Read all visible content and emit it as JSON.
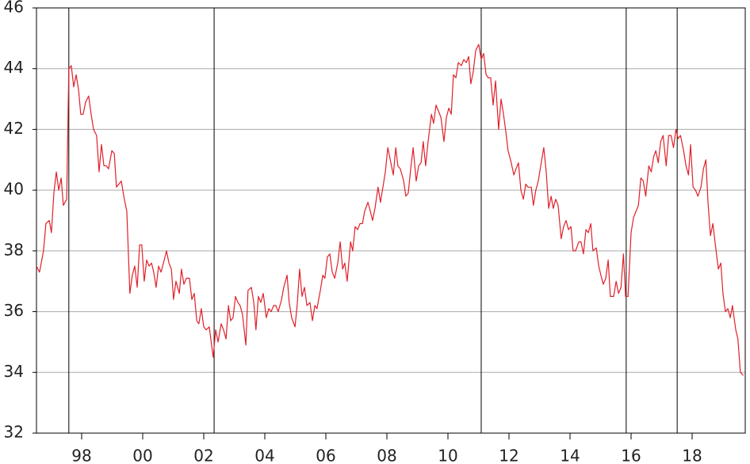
{
  "chart_data": {
    "type": "line",
    "x": [
      1997.02,
      1997.12,
      1997.25,
      1997.33,
      1997.44,
      1997.51,
      1997.59,
      1997.67,
      1997.75,
      1997.83,
      1997.9,
      1998.01,
      1998.08,
      1998.16,
      1998.24,
      1998.32,
      1998.4,
      1998.47,
      1998.55,
      1998.63,
      1998.73,
      1998.81,
      1998.89,
      1998.99,
      1999.07,
      1999.15,
      1999.23,
      1999.31,
      1999.38,
      1999.49,
      1999.57,
      1999.64,
      1999.72,
      1999.8,
      1999.88,
      1999.98,
      2000.08,
      2000.16,
      2000.24,
      2000.32,
      2000.4,
      2000.47,
      2000.55,
      2000.63,
      2000.71,
      2000.79,
      2000.86,
      2000.94,
      2001.02,
      2001.1,
      2001.18,
      2001.28,
      2001.36,
      2001.44,
      2001.51,
      2001.59,
      2001.7,
      2001.77,
      2001.85,
      2001.93,
      2002.03,
      2002.11,
      2002.19,
      2002.27,
      2002.34,
      2002.42,
      2002.5,
      2002.58,
      2002.68,
      2002.81,
      2002.89,
      2002.97,
      2003.07,
      2003.15,
      2003.23,
      2003.31,
      2003.38,
      2003.46,
      2003.54,
      2003.62,
      2003.69,
      2003.77,
      2003.88,
      2003.95,
      2004.06,
      2004.14,
      2004.21,
      2004.29,
      2004.37,
      2004.45,
      2004.55,
      2004.63,
      2004.71,
      2004.79,
      2004.86,
      2004.94,
      2005.05,
      2005.12,
      2005.23,
      2005.3,
      2005.38,
      2005.49,
      2005.56,
      2005.64,
      2005.72,
      2005.8,
      2005.88,
      2005.98,
      2006.06,
      2006.14,
      2006.21,
      2006.32,
      2006.4,
      2006.47,
      2006.55,
      2006.63,
      2006.71,
      2006.79,
      2006.89,
      2006.97,
      2007.05,
      2007.12,
      2007.2,
      2007.31,
      2007.38,
      2007.46,
      2007.54,
      2007.62,
      2007.7,
      2007.77,
      2007.88,
      2007.96,
      2008.03,
      2008.11,
      2008.21,
      2008.29,
      2008.37,
      2008.45,
      2008.53,
      2008.63,
      2008.71,
      2008.79,
      2008.86,
      2008.94,
      2009.05,
      2009.12,
      2009.2,
      2009.28,
      2009.36,
      2009.46,
      2009.54,
      2009.62,
      2009.69,
      2009.77,
      2009.85,
      2009.96,
      2010.03,
      2010.11,
      2010.19,
      2010.27,
      2010.37,
      2010.45,
      2010.53,
      2010.61,
      2010.68,
      2010.76,
      2010.84,
      2010.94,
      2011.02,
      2011.1,
      2011.18,
      2011.25,
      2011.33,
      2011.41,
      2011.51,
      2011.59,
      2011.67,
      2011.75,
      2011.82,
      2011.9,
      2011.98,
      2012.06,
      2012.16,
      2012.24,
      2012.32,
      2012.4,
      2012.47,
      2012.55,
      2012.66,
      2012.73,
      2012.81,
      2012.89,
      2012.97,
      2013.05,
      2013.12,
      2013.23,
      2013.3,
      2013.38,
      2013.46,
      2013.54,
      2013.64,
      2013.72,
      2013.8,
      2013.88,
      2013.95,
      2014.03,
      2014.11,
      2014.21,
      2014.29,
      2014.37,
      2014.45,
      2014.53,
      2014.6,
      2014.68,
      2014.79,
      2014.86,
      2014.94,
      2015.02,
      2015.1,
      2015.18,
      2015.25,
      2015.36,
      2015.44,
      2015.51,
      2015.59,
      2015.67,
      2015.75,
      2015.82,
      2015.93,
      2016.01,
      2016.09,
      2016.17,
      2016.25,
      2016.32,
      2016.4,
      2016.5,
      2016.58,
      2016.66,
      2016.74,
      2016.82,
      2016.9,
      2016.98,
      2017.08,
      2017.16,
      2017.24,
      2017.31,
      2017.39,
      2017.47,
      2017.55,
      2017.65,
      2017.73,
      2017.81,
      2017.89,
      2017.97,
      2018.04,
      2018.12,
      2018.22,
      2018.3,
      2018.38,
      2018.45,
      2018.53,
      2018.61,
      2018.69,
      2018.79,
      2018.87,
      2018.95,
      2019.02,
      2019.1,
      2019.18,
      2019.26,
      2019.36,
      2019.44,
      2019.51,
      2019.59,
      2019.67,
      2019.75,
      2019.82,
      2019.93,
      2020.0,
      2020.08,
      2020.18
    ],
    "series": [
      {
        "color": "#e0202a",
        "values": [
          37.5,
          37.3,
          38.0,
          38.9,
          39.0,
          38.6,
          39.9,
          40.6,
          40.0,
          40.4,
          39.5,
          39.7,
          44.0,
          44.1,
          43.4,
          43.8,
          43.3,
          42.5,
          42.5,
          42.9,
          43.1,
          42.5,
          42.0,
          41.8,
          40.6,
          41.5,
          40.8,
          40.8,
          40.7,
          41.3,
          41.2,
          40.1,
          40.2,
          40.3,
          39.8,
          39.3,
          36.6,
          37.2,
          37.5,
          36.8,
          38.2,
          38.2,
          37.0,
          37.7,
          37.5,
          37.6,
          37.3,
          36.8,
          37.5,
          37.3,
          37.6,
          38.0,
          37.6,
          37.4,
          36.4,
          37.0,
          36.6,
          37.4,
          36.9,
          37.1,
          37.1,
          36.4,
          36.6,
          35.7,
          35.6,
          36.1,
          35.5,
          35.4,
          35.5,
          34.5,
          35.4,
          35.0,
          35.6,
          35.4,
          35.1,
          36.2,
          35.7,
          35.8,
          36.5,
          36.3,
          36.2,
          35.9,
          34.9,
          36.7,
          36.8,
          36.3,
          35.4,
          36.5,
          36.3,
          36.6,
          35.8,
          36.1,
          36.0,
          36.2,
          36.2,
          36.0,
          36.4,
          36.8,
          37.2,
          36.3,
          35.8,
          35.5,
          36.2,
          37.4,
          36.5,
          36.8,
          36.2,
          36.3,
          35.7,
          36.2,
          36.1,
          36.7,
          37.2,
          37.1,
          37.8,
          37.9,
          37.3,
          37.1,
          37.6,
          38.3,
          37.4,
          37.6,
          37.0,
          38.3,
          38.0,
          38.8,
          38.7,
          38.9,
          38.9,
          39.3,
          39.6,
          39.3,
          39.0,
          39.4,
          40.1,
          39.6,
          40.1,
          40.6,
          41.4,
          40.9,
          40.5,
          41.4,
          40.8,
          40.7,
          40.3,
          39.8,
          39.9,
          40.7,
          41.4,
          40.3,
          40.8,
          40.9,
          41.6,
          40.8,
          41.6,
          42.5,
          42.2,
          42.8,
          42.6,
          42.4,
          41.6,
          42.4,
          42.7,
          42.5,
          43.8,
          43.7,
          44.2,
          44.1,
          44.3,
          44.2,
          44.4,
          43.5,
          43.9,
          44.6,
          44.8,
          44.3,
          44.5,
          43.8,
          43.7,
          43.7,
          42.8,
          43.6,
          42.0,
          43.0,
          42.5,
          41.9,
          41.3,
          41.0,
          40.5,
          40.7,
          40.9,
          40.0,
          39.7,
          40.2,
          40.1,
          40.1,
          39.5,
          40.0,
          40.3,
          40.8,
          41.4,
          40.6,
          39.4,
          39.8,
          39.4,
          39.7,
          39.5,
          38.4,
          38.8,
          39.0,
          38.7,
          38.8,
          38.0,
          38.0,
          38.3,
          38.3,
          37.9,
          38.7,
          38.6,
          38.9,
          38.0,
          38.1,
          37.5,
          37.2,
          36.9,
          37.1,
          37.7,
          36.5,
          36.5,
          37.0,
          36.6,
          36.8,
          37.9,
          36.5,
          36.5,
          38.6,
          39.1,
          39.3,
          39.5,
          40.4,
          40.3,
          39.8,
          40.8,
          40.6,
          41.1,
          41.3,
          40.9,
          41.6,
          41.8,
          40.8,
          41.8,
          41.8,
          41.4,
          42.0,
          41.7,
          41.8,
          41.3,
          40.8,
          40.5,
          41.5,
          40.1,
          40.0,
          39.8,
          40.1,
          40.7,
          41.0,
          39.6,
          38.5,
          38.9,
          38.2,
          37.4,
          37.6,
          36.6,
          36.0,
          36.1,
          35.8,
          36.2,
          35.4,
          35.1,
          34.0,
          33.9
        ]
      }
    ],
    "xlim": [
      1997.02,
      2020.24
    ],
    "xticks": [
      {
        "value": 1998.5,
        "label": "98"
      },
      {
        "value": 2000.5,
        "label": "00"
      },
      {
        "value": 2002.5,
        "label": "02"
      },
      {
        "value": 2004.5,
        "label": "04"
      },
      {
        "value": 2006.5,
        "label": "06"
      },
      {
        "value": 2008.5,
        "label": "08"
      },
      {
        "value": 2010.5,
        "label": "10"
      },
      {
        "value": 2012.5,
        "label": "12"
      },
      {
        "value": 2014.5,
        "label": "14"
      },
      {
        "value": 2016.5,
        "label": "16"
      },
      {
        "value": 2018.5,
        "label": "18"
      }
    ],
    "ylim": [
      32,
      46
    ],
    "yticks": [
      32,
      34,
      36,
      38,
      40,
      42,
      44,
      46
    ],
    "vlines": [
      1998.08,
      2002.84,
      2011.59,
      2016.34,
      2018.01
    ],
    "grid": true
  }
}
